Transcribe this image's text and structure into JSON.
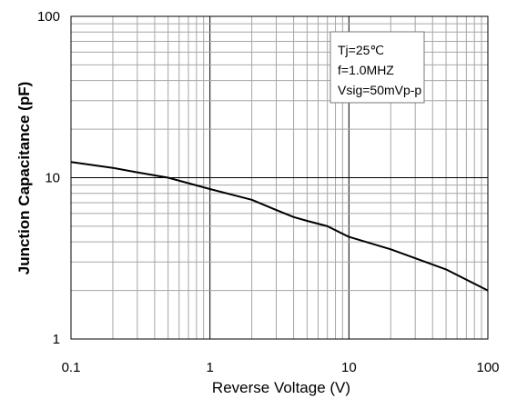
{
  "chart_data": {
    "type": "line",
    "xscale": "log",
    "yscale": "log",
    "xlim": [
      0.1,
      100
    ],
    "ylim": [
      1,
      100
    ],
    "grid": true,
    "xlabel": "Reverse Voltage (V)",
    "ylabel": "Junction Capacitance (pF)",
    "x_ticks": [
      {
        "value": 0.1,
        "label": "0.1"
      },
      {
        "value": 1,
        "label": "1"
      },
      {
        "value": 10,
        "label": "10"
      },
      {
        "value": 100,
        "label": "100"
      }
    ],
    "y_ticks": [
      {
        "value": 1,
        "label": "1"
      },
      {
        "value": 10,
        "label": "10"
      },
      {
        "value": 100,
        "label": "100"
      }
    ],
    "annotations": [
      "Tj=25℃",
      "f=1.0MHZ",
      "Vsig=50mVp-p"
    ],
    "series": [
      {
        "x": [
          0.1,
          0.2,
          0.3,
          0.5,
          1,
          2,
          3,
          4,
          5,
          7,
          10,
          20,
          50,
          100
        ],
        "values": [
          12.5,
          11.5,
          10.8,
          10.0,
          8.5,
          7.3,
          6.3,
          5.7,
          5.4,
          5.0,
          4.3,
          3.6,
          2.7,
          2.0
        ]
      }
    ]
  }
}
